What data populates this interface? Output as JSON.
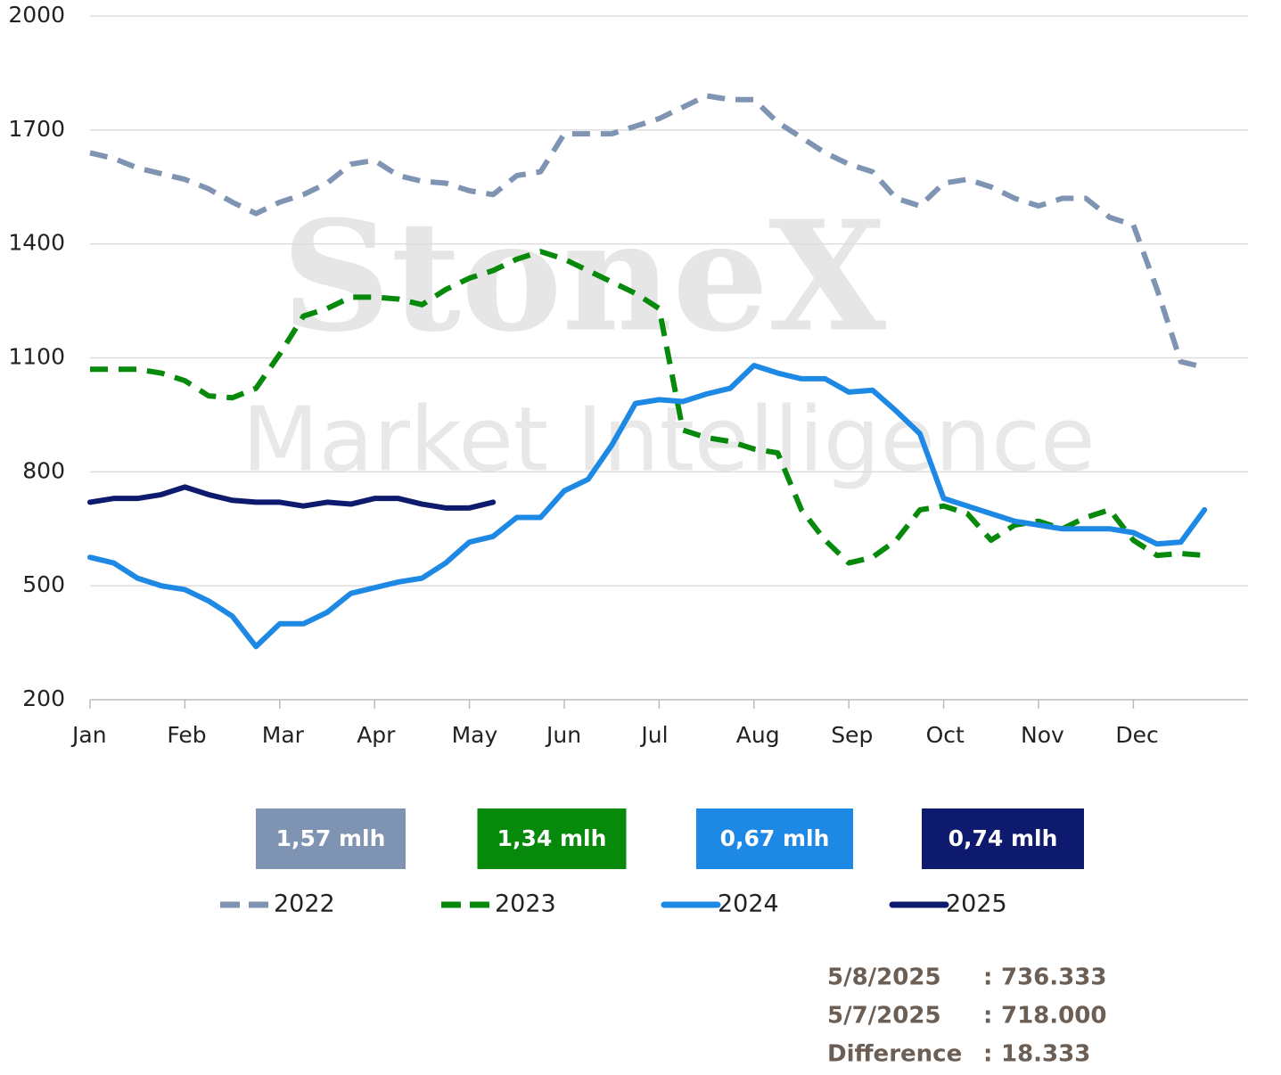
{
  "chart_data": {
    "type": "line",
    "watermark": [
      "StoneX",
      "Market Intelligence"
    ],
    "categories": [
      "Jan",
      null,
      null,
      null,
      "Feb",
      null,
      null,
      null,
      "Mar",
      null,
      null,
      null,
      "Apr",
      null,
      null,
      null,
      "May",
      null,
      null,
      null,
      "Jun",
      null,
      null,
      null,
      "Jul",
      null,
      null,
      null,
      "Aug",
      null,
      null,
      null,
      "Sep",
      null,
      null,
      null,
      "Oct",
      null,
      null,
      null,
      "Nov",
      null,
      null,
      null,
      "Dec",
      null,
      null,
      null
    ],
    "ylim": [
      200,
      2000
    ],
    "yticks": [
      200,
      500,
      800,
      1100,
      1400,
      1700,
      2000
    ],
    "grid": true,
    "series": [
      {
        "name": "2022",
        "color": "#7f93b3",
        "style": "dashed",
        "values": [
          1640,
          1625,
          1600,
          1585,
          1570,
          1545,
          1510,
          1480,
          1510,
          1530,
          1560,
          1610,
          1620,
          1580,
          1565,
          1560,
          1540,
          1530,
          1580,
          1590,
          1690,
          1690,
          1690,
          1710,
          1730,
          1760,
          1790,
          1780,
          1780,
          1720,
          1680,
          1640,
          1610,
          1590,
          1520,
          1500,
          1560,
          1570,
          1550,
          1520,
          1500,
          1520,
          1520,
          1470,
          1450,
          1280,
          1090,
          1075
        ]
      },
      {
        "name": "2023",
        "color": "#078a0b",
        "style": "dashed",
        "values": [
          1070,
          1070,
          1070,
          1060,
          1040,
          1000,
          995,
          1020,
          1110,
          1210,
          1230,
          1260,
          1260,
          1255,
          1240,
          1280,
          1310,
          1330,
          1360,
          1380,
          1360,
          1330,
          1300,
          1270,
          1230,
          910,
          890,
          880,
          860,
          850,
          700,
          620,
          560,
          575,
          620,
          700,
          710,
          690,
          620,
          660,
          670,
          650,
          680,
          700,
          620,
          580,
          585,
          580
        ]
      },
      {
        "name": "2024",
        "color": "#1e88e5",
        "style": "solid",
        "values": [
          575,
          560,
          520,
          500,
          490,
          460,
          420,
          340,
          400,
          400,
          430,
          480,
          495,
          510,
          520,
          560,
          615,
          630,
          680,
          680,
          750,
          780,
          870,
          980,
          990,
          985,
          1005,
          1020,
          1080,
          1060,
          1045,
          1045,
          1010,
          1015,
          960,
          900,
          730,
          710,
          690,
          670,
          660,
          650,
          650,
          650,
          640,
          610,
          615,
          700
        ]
      },
      {
        "name": "2025",
        "color": "#0d1a6e",
        "style": "solid",
        "values": [
          720,
          730,
          730,
          740,
          760,
          740,
          725,
          720,
          720,
          710,
          720,
          715,
          730,
          730,
          715,
          705,
          705,
          720,
          null,
          null,
          null,
          null,
          null,
          null,
          null,
          null,
          null,
          null,
          null,
          null,
          null,
          null,
          null,
          null,
          null,
          null,
          null,
          null,
          null,
          null,
          null,
          null,
          null,
          null,
          null,
          null,
          null,
          null
        ]
      }
    ],
    "annotations": [
      "1,57 mlh",
      "1,34 mlh",
      "0,67 mlh",
      "0,74 mlh"
    ],
    "summary": [
      [
        "5/8/2025",
        ":",
        "736.333"
      ],
      [
        "5/7/2025",
        ":",
        "718.000"
      ],
      [
        "Difference",
        ":",
        "18.333"
      ]
    ]
  }
}
